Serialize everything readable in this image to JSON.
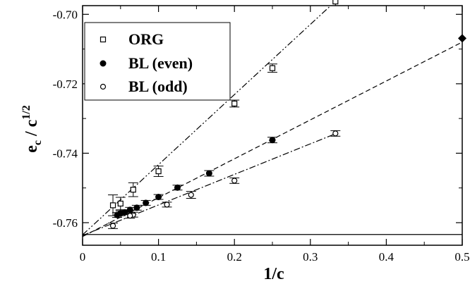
{
  "chart_data": {
    "type": "scatter",
    "xlabel": "1/c",
    "ylabel_main": "e",
    "ylabel_sub": "c",
    "ylabel_mid": " / c",
    "ylabel_sup": "1/2",
    "xlim": [
      0,
      0.5
    ],
    "ylim": [
      -0.7665,
      -0.6975
    ],
    "xticks": [
      0,
      0.1,
      0.2,
      0.3,
      0.4,
      0.5
    ],
    "xtick_labels": [
      "0",
      "0.1",
      "0.2",
      "0.3",
      "0.4",
      "0.5"
    ],
    "yticks": [
      -0.76,
      -0.74,
      -0.72,
      -0.7
    ],
    "ytick_labels": [
      "-0.76",
      "-0.74",
      "-0.72",
      "-0.70"
    ],
    "grid": false,
    "legend_position": "top-left",
    "reference_line_y": -0.7634,
    "series": [
      {
        "name": "ORG",
        "marker": "open-square",
        "points": [
          {
            "x": 0.333,
            "y": -0.6963,
            "err": 0.0012
          },
          {
            "x": 0.25,
            "y": -0.7155,
            "err": 0.0012
          },
          {
            "x": 0.2,
            "y": -0.7257,
            "err": 0.001
          },
          {
            "x": 0.1,
            "y": -0.7452,
            "err": 0.0015
          },
          {
            "x": 0.0667,
            "y": -0.7505,
            "err": 0.002
          },
          {
            "x": 0.05,
            "y": -0.7545,
            "err": 0.0018
          },
          {
            "x": 0.04,
            "y": -0.755,
            "err": 0.003
          }
        ],
        "fit": {
          "intercept": -0.7635,
          "slope": 0.202,
          "x_range": [
            0,
            0.335
          ]
        }
      },
      {
        "name": "BL (even)",
        "marker": "filled-circle",
        "points": [
          {
            "x": 0.25,
            "y": -0.7362,
            "err": 0.0008
          },
          {
            "x": 0.1667,
            "y": -0.7458,
            "err": 0.0008
          },
          {
            "x": 0.125,
            "y": -0.7499,
            "err": 0.0007
          },
          {
            "x": 0.1,
            "y": -0.7526,
            "err": 0.0007
          },
          {
            "x": 0.0833,
            "y": -0.7543,
            "err": 0.0007
          },
          {
            "x": 0.0714,
            "y": -0.7557,
            "err": 0.0007
          },
          {
            "x": 0.0625,
            "y": -0.7563,
            "err": 0.0007
          },
          {
            "x": 0.0556,
            "y": -0.757,
            "err": 0.0007
          },
          {
            "x": 0.05,
            "y": -0.7573,
            "err": 0.0007
          },
          {
            "x": 0.0455,
            "y": -0.7578,
            "err": 0.0007
          }
        ],
        "fit": {
          "intercept": -0.764,
          "slope": 0.112,
          "x_range": [
            0,
            0.5
          ]
        }
      },
      {
        "name": "BL (odd)",
        "marker": "open-circle",
        "points": [
          {
            "x": 0.333,
            "y": -0.7343,
            "err": 0.0008
          },
          {
            "x": 0.2,
            "y": -0.7479,
            "err": 0.0008
          },
          {
            "x": 0.1429,
            "y": -0.752,
            "err": 0.001
          },
          {
            "x": 0.1111,
            "y": -0.7548,
            "err": 0.0007
          },
          {
            "x": 0.0667,
            "y": -0.7577,
            "err": 0.0007
          },
          {
            "x": 0.0625,
            "y": -0.758,
            "err": 0.0007
          },
          {
            "x": 0.04,
            "y": -0.7609,
            "err": 0.0008
          }
        ],
        "fit": {
          "intercept": -0.7637,
          "slope": 0.088,
          "x_range": [
            0,
            0.335
          ]
        }
      }
    ],
    "extra_points": [
      {
        "x": 0.5,
        "y": -0.7069,
        "marker": "filled-diamond"
      }
    ],
    "colors": {
      "foreground": "#000000",
      "background": "#ffffff"
    }
  }
}
